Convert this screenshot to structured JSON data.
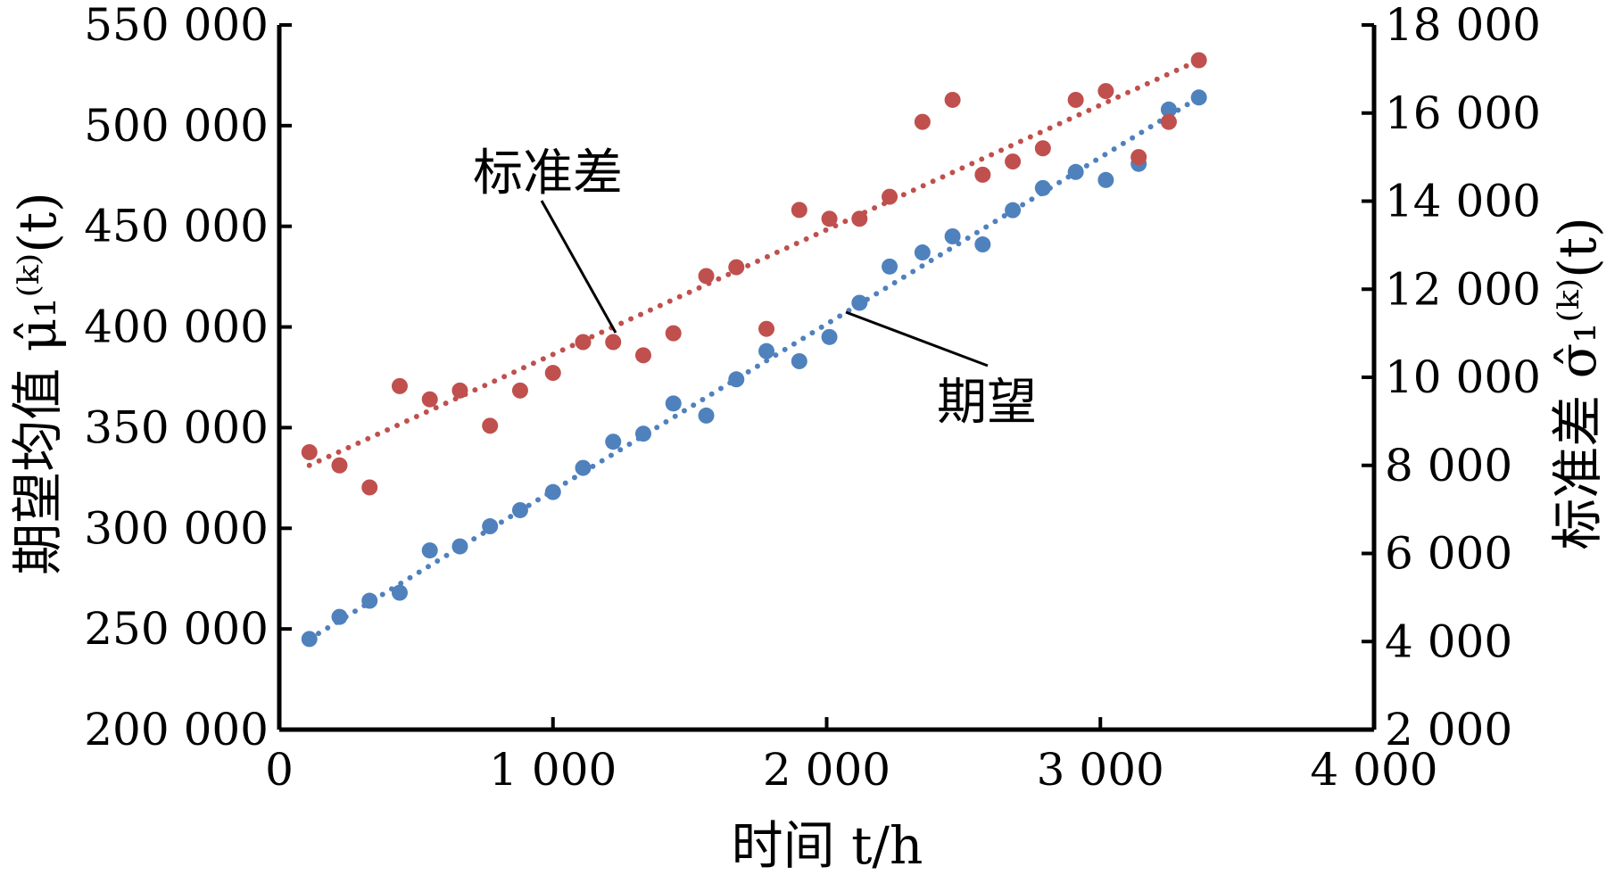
{
  "chart_data": {
    "type": "scatter",
    "xlabel": "时间 t/h",
    "ylabel_left": "期望均值 μ̂₁⁽ᵏ⁾(t)",
    "ylabel_right": "标准差 σ̂₁⁽ᵏ⁾(t)",
    "x_ticks": [
      0,
      1000,
      2000,
      3000,
      4000
    ],
    "x_tick_labels": [
      "0",
      "1 000",
      "2 000",
      "3 000",
      "4 000"
    ],
    "y_left_ticks": [
      200000,
      250000,
      300000,
      350000,
      400000,
      450000,
      500000,
      550000
    ],
    "y_left_tick_labels": [
      "200 000",
      "250 000",
      "300 000",
      "350 000",
      "400 000",
      "450 000",
      "500 000",
      "550 000"
    ],
    "y_right_ticks": [
      2000,
      4000,
      6000,
      8000,
      10000,
      12000,
      14000,
      16000,
      18000
    ],
    "y_right_tick_labels": [
      "2 000",
      "4 000",
      "6 000",
      "8 000",
      "10 000",
      "12 000",
      "14 000",
      "16 000",
      "18 000"
    ],
    "xlim": [
      0,
      4000
    ],
    "ylim_left": [
      200000,
      550000
    ],
    "ylim_right": [
      2000,
      18000
    ],
    "grid": false,
    "series": [
      {
        "name": "期望",
        "axis": "left",
        "color": "#4f81bd",
        "x": [
          110,
          220,
          330,
          440,
          550,
          660,
          770,
          880,
          1000,
          1110,
          1220,
          1330,
          1440,
          1560,
          1670,
          1780,
          1900,
          2010,
          2120,
          2230,
          2350,
          2460,
          2570,
          2680,
          2790,
          2910,
          3020,
          3140,
          3250,
          3360
        ],
        "y": [
          245000,
          256000,
          264000,
          268000,
          289000,
          291000,
          301000,
          309000,
          318000,
          330000,
          343000,
          347000,
          362000,
          356000,
          374000,
          388000,
          383000,
          395000,
          412000,
          430000,
          437000,
          445000,
          441000,
          458000,
          469000,
          477000,
          473000,
          481000,
          508000,
          514000
        ],
        "trend": [
          [
            110,
            245000
          ],
          [
            3360,
            514000
          ]
        ]
      },
      {
        "name": "标准差",
        "axis": "right",
        "color": "#c0504d",
        "x": [
          110,
          220,
          330,
          440,
          550,
          660,
          770,
          880,
          1000,
          1110,
          1220,
          1330,
          1440,
          1560,
          1670,
          1780,
          1900,
          2010,
          2120,
          2230,
          2350,
          2460,
          2570,
          2680,
          2790,
          2910,
          3020,
          3140,
          3250,
          3360
        ],
        "y": [
          8300,
          8000,
          7500,
          9800,
          9500,
          9700,
          8900,
          9700,
          10100,
          10800,
          10800,
          10500,
          11000,
          12300,
          12500,
          11100,
          13800,
          13600,
          13600,
          14100,
          15800,
          16300,
          14600,
          14900,
          15200,
          16300,
          16500,
          15000,
          15800,
          17200
        ],
        "trend": [
          [
            110,
            8000
          ],
          [
            3360,
            17200
          ]
        ]
      }
    ],
    "annotations": [
      {
        "text": "标准差",
        "target_series": "标准差"
      },
      {
        "text": "期望",
        "target_series": "期望"
      }
    ]
  }
}
